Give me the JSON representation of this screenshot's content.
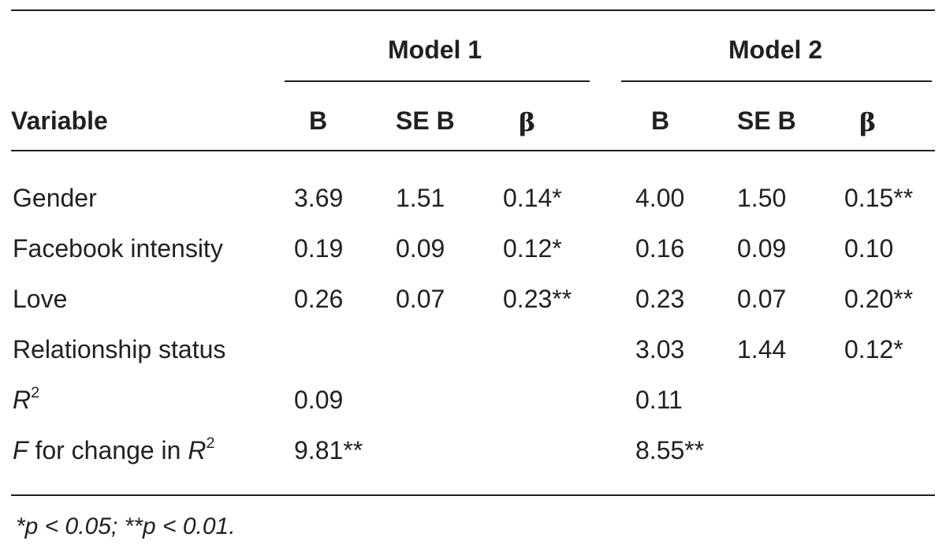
{
  "table": {
    "group_headers": [
      "Model 1",
      "Model 2"
    ],
    "col_headers": [
      "Variable",
      "B",
      "SE B",
      "β",
      "B",
      "SE B",
      "β"
    ],
    "rows": [
      {
        "variable": "Gender",
        "cells": [
          "3.69",
          "1.51",
          "0.14*",
          "4.00",
          "1.50",
          "0.15**"
        ]
      },
      {
        "variable": "Facebook intensity",
        "cells": [
          "0.19",
          "0.09",
          "0.12*",
          "0.16",
          "0.09",
          "0.10"
        ]
      },
      {
        "variable": "Love",
        "cells": [
          "0.26",
          "0.07",
          "0.23**",
          "0.23",
          "0.07",
          "0.20**"
        ]
      },
      {
        "variable": "Relationship status",
        "cells": [
          "",
          "",
          "",
          "3.03",
          "1.44",
          "0.12*"
        ]
      },
      {
        "variable_base": "R",
        "variable_sup": "2",
        "cells": [
          "0.09",
          "",
          "",
          "0.11",
          "",
          ""
        ]
      },
      {
        "variable_prefix": "F",
        "variable_text": " for change in ",
        "variable_base": "R",
        "variable_sup": "2",
        "cells": [
          "9.81**",
          "",
          "",
          "8.55**",
          "",
          ""
        ]
      }
    ],
    "footnote": "*p < 0.05; **p < 0.01."
  }
}
